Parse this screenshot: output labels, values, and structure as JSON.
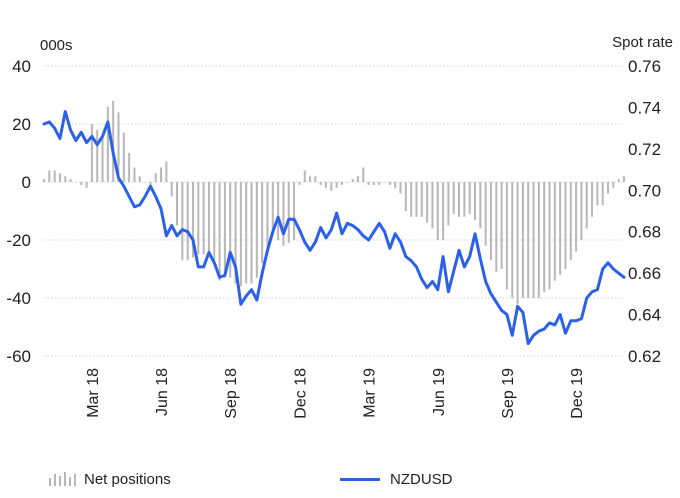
{
  "chart_data": {
    "type": "bar+line",
    "left_axis": {
      "unit": "000s",
      "ylim": [
        -60,
        40
      ],
      "ticks": [
        "40",
        "20",
        "0",
        "-20",
        "-40",
        "-60"
      ]
    },
    "right_axis": {
      "label": "Spot rate",
      "ylim": [
        0.62,
        0.76
      ],
      "ticks": [
        "0.76",
        "0.74",
        "0.72",
        "0.70",
        "0.68",
        "0.66",
        "0.64",
        "0.62"
      ]
    },
    "x_tick_labels": [
      "Mar 18",
      "Jun 18",
      "Sep 18",
      "Dec 18",
      "Mar 19",
      "Jun 19",
      "Sep 19",
      "Dec 19"
    ],
    "x_tick_index": [
      9,
      22,
      35,
      48,
      61,
      74,
      87,
      100
    ],
    "grid": "horizontal",
    "series": [
      {
        "name": "Net positions",
        "type": "bar",
        "axis": "left",
        "color": "#b7b7b7",
        "values": [
          1,
          4,
          4,
          3,
          2,
          1,
          0,
          -1,
          -2,
          20,
          18,
          16,
          26,
          28,
          24,
          17,
          10,
          5,
          2,
          0,
          -1,
          3,
          5,
          7,
          -5,
          -15,
          -27,
          -27,
          -26,
          -25,
          -25,
          -24,
          -28,
          -34,
          -33,
          -33,
          -35,
          -36,
          -35,
          -35,
          -33,
          -28,
          -23,
          -17,
          -20,
          -22,
          -21,
          -20,
          -1,
          4,
          2,
          2,
          -1,
          -2,
          -3,
          -2,
          -1,
          0,
          1,
          2,
          5,
          -1,
          -1,
          -1,
          0,
          -1,
          -2,
          -4,
          -10,
          -12,
          -12,
          -12,
          -14,
          -16,
          -20,
          -20,
          -15,
          -11,
          -12,
          -12,
          -11,
          -13,
          -16,
          -22,
          -27,
          -31,
          -30,
          -37,
          -40,
          -42,
          -40,
          -40,
          -40,
          -40,
          -38,
          -37,
          -34,
          -32,
          -30,
          -27,
          -24,
          -20,
          -16,
          -12,
          -8,
          -8,
          -4,
          -2,
          1,
          2
        ]
      },
      {
        "name": "NZDUSD",
        "type": "line",
        "axis": "right",
        "color": "#2b60e8",
        "values": [
          0.732,
          0.733,
          0.73,
          0.725,
          0.738,
          0.729,
          0.724,
          0.728,
          0.723,
          0.726,
          0.722,
          0.726,
          0.733,
          0.718,
          0.706,
          0.702,
          0.697,
          0.692,
          0.693,
          0.697,
          0.702,
          0.697,
          0.691,
          0.678,
          0.683,
          0.678,
          0.681,
          0.68,
          0.676,
          0.663,
          0.663,
          0.67,
          0.665,
          0.658,
          0.659,
          0.67,
          0.663,
          0.645,
          0.649,
          0.652,
          0.647,
          0.66,
          0.671,
          0.68,
          0.687,
          0.679,
          0.686,
          0.686,
          0.681,
          0.675,
          0.671,
          0.675,
          0.682,
          0.677,
          0.681,
          0.689,
          0.679,
          0.684,
          0.683,
          0.681,
          0.678,
          0.676,
          0.68,
          0.684,
          0.68,
          0.672,
          0.679,
          0.675,
          0.668,
          0.666,
          0.663,
          0.657,
          0.653,
          0.656,
          0.652,
          0.668,
          0.651,
          0.661,
          0.671,
          0.663,
          0.668,
          0.679,
          0.667,
          0.656,
          0.65,
          0.646,
          0.642,
          0.64,
          0.63,
          0.644,
          0.641,
          0.626,
          0.63,
          0.632,
          0.633,
          0.636,
          0.635,
          0.64,
          0.631,
          0.637,
          0.637,
          0.638,
          0.648,
          0.651,
          0.652,
          0.662,
          0.665,
          0.662,
          0.66,
          0.658
        ]
      }
    ]
  },
  "legend": {
    "bars_label": "Net positions",
    "line_label": "NZDUSD",
    "bars_color": "#b7b7b7",
    "line_color": "#2b60e8"
  }
}
